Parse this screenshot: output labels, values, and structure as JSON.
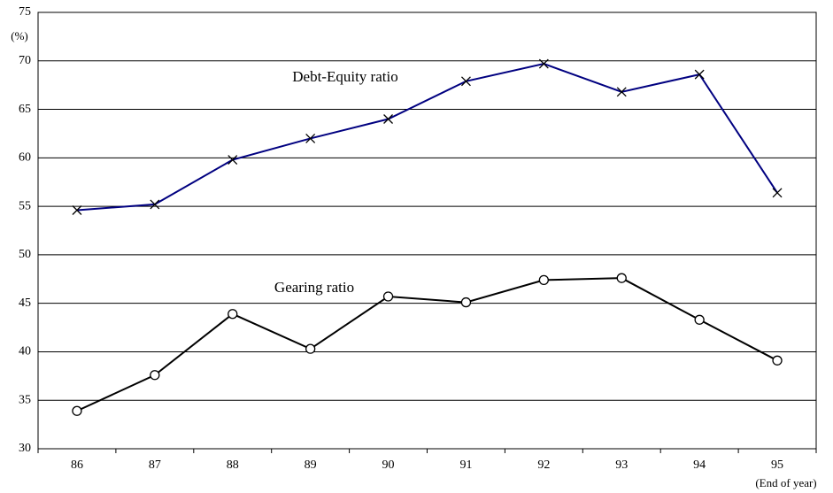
{
  "chart_data": {
    "type": "line",
    "categories": [
      "86",
      "87",
      "88",
      "89",
      "90",
      "91",
      "92",
      "93",
      "94",
      "95"
    ],
    "series": [
      {
        "name": "Debt-Equity ratio",
        "color": "#000080",
        "marker": "x",
        "values": [
          54.6,
          55.2,
          59.8,
          62.0,
          64.0,
          67.9,
          69.7,
          66.8,
          68.6,
          56.4
        ]
      },
      {
        "name": "Gearing ratio",
        "color": "#000000",
        "marker": "circle",
        "values": [
          33.9,
          37.6,
          43.9,
          40.3,
          45.7,
          45.1,
          47.4,
          47.6,
          43.3,
          39.1
        ]
      }
    ],
    "ylabel": "(%)",
    "xlabel": "(End of year)",
    "ylim": [
      30,
      75
    ],
    "yticks": [
      30,
      35,
      40,
      45,
      50,
      55,
      60,
      65,
      70,
      75
    ],
    "grid": true
  }
}
